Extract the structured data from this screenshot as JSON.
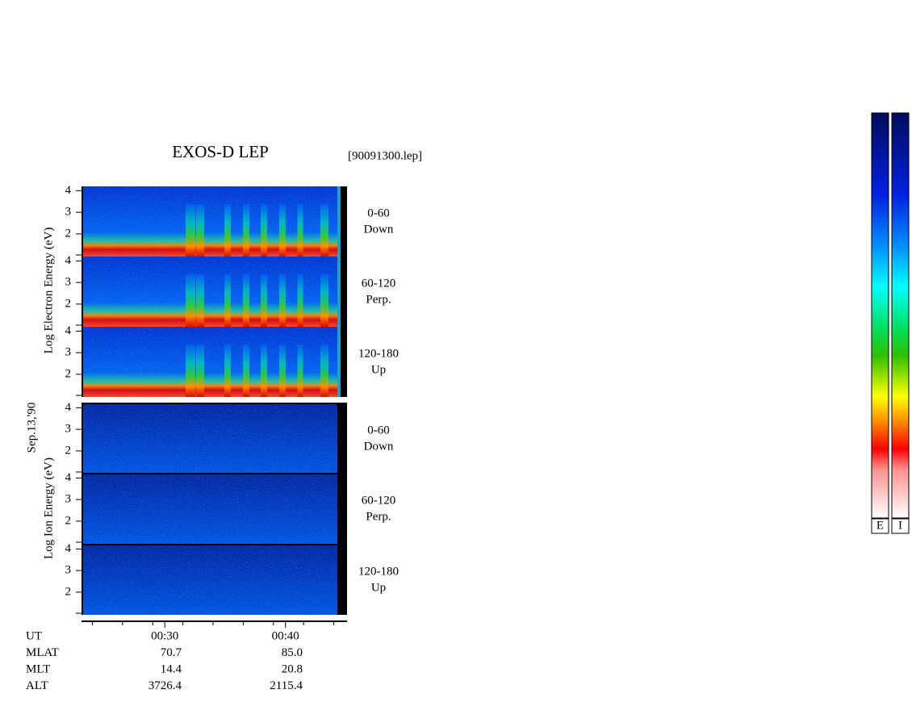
{
  "title": "EXOS-D LEP",
  "file": "[90091300.lep]",
  "electron_axis_label": "Log Electron Energy (eV)",
  "date": "Sep.13,'90",
  "ion_axis_label": "Log Ion Energy (eV)",
  "ylim": [
    0.95,
    4.2
  ],
  "yticks": [
    2,
    3,
    4
  ],
  "panels": [
    {
      "species": "electron",
      "label": "0-60",
      "sublabel": "Down"
    },
    {
      "species": "electron",
      "label": "60-120",
      "sublabel": "Perp."
    },
    {
      "species": "electron",
      "label": "120-180",
      "sublabel": "Up"
    },
    {
      "species": "ion",
      "label": "0-60",
      "sublabel": "Down"
    },
    {
      "species": "ion",
      "label": "60-120",
      "sublabel": "Perp."
    },
    {
      "species": "ion",
      "label": "120-180",
      "sublabel": "Up"
    }
  ],
  "xlim": [
    23.1,
    45.1
  ],
  "xticks": [
    {
      "value": 30,
      "label": "00:30"
    },
    {
      "value": 40,
      "label": "00:40"
    }
  ],
  "ephemeris": [
    {
      "name": "UT"
    },
    {
      "name": "MLAT",
      "values": [
        "70.7",
        "85.0"
      ]
    },
    {
      "name": "MLT",
      "values": [
        "14.4",
        "20.8"
      ]
    },
    {
      "name": "ALT",
      "values": [
        "3726.4",
        "2115.4"
      ]
    }
  ],
  "colorbars": [
    "E",
    "I"
  ]
}
